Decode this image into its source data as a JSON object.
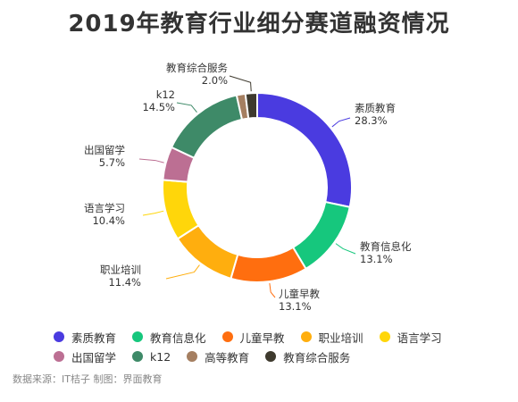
{
  "chart_data": {
    "type": "pie",
    "variant": "donut",
    "title": "2019年教育行业细分赛道融资情况",
    "categories": [
      "素质教育",
      "教育信息化",
      "儿童早教",
      "职业培训",
      "语言学习",
      "出国留学",
      "k12",
      "高等教育",
      "教育综合服务"
    ],
    "values": [
      28.3,
      13.1,
      13.1,
      11.4,
      10.4,
      5.7,
      14.5,
      1.5,
      2.0
    ],
    "labels": [
      "28.3%",
      "13.1%",
      "13.1%",
      "11.4%",
      "10.4%",
      "5.7%",
      "14.5%",
      "",
      "2.0%"
    ],
    "colors": [
      "#4A3BE0",
      "#16C77D",
      "#FF6E0F",
      "#FFAE0E",
      "#FFD60A",
      "#BC6F93",
      "#3E8A68",
      "#A57F61",
      "#3E3A2E"
    ],
    "legend_placement": "bottom"
  },
  "source": "数据来源：IT桔子 制图：界面教育"
}
